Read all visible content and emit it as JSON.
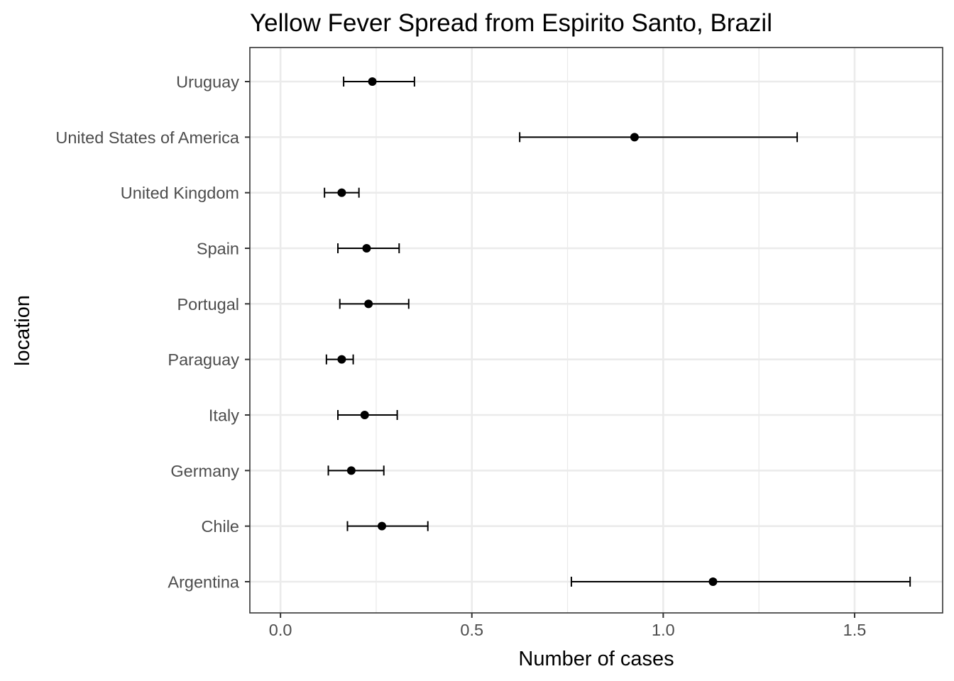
{
  "chart_data": {
    "type": "errorbar",
    "orientation": "horizontal",
    "title": "Yellow Fever Spread from Espirito Santo, Brazil",
    "xlabel": "Number of cases",
    "ylabel": "location",
    "xlim": [
      -0.08,
      1.73
    ],
    "x_ticks": [
      0.0,
      0.5,
      1.0,
      1.5
    ],
    "x_tick_labels": [
      "0.0",
      "0.5",
      "1.0",
      "1.5"
    ],
    "grid": true,
    "categories": [
      "Argentina",
      "Chile",
      "Germany",
      "Italy",
      "Paraguay",
      "Portugal",
      "Spain",
      "United Kingdom",
      "United States of America",
      "Uruguay"
    ],
    "values": [
      1.13,
      0.265,
      0.185,
      0.22,
      0.16,
      0.23,
      0.225,
      0.16,
      0.925,
      0.24
    ],
    "lower": [
      0.76,
      0.175,
      0.125,
      0.15,
      0.12,
      0.155,
      0.15,
      0.115,
      0.625,
      0.165
    ],
    "upper": [
      1.645,
      0.385,
      0.27,
      0.305,
      0.19,
      0.335,
      0.31,
      0.205,
      1.35,
      0.35
    ],
    "colors": {
      "point": "#000000",
      "bar": "#000000",
      "grid": "#ebebeb",
      "panel_border": "#333333",
      "tick_text": "#4d4d4d"
    }
  }
}
